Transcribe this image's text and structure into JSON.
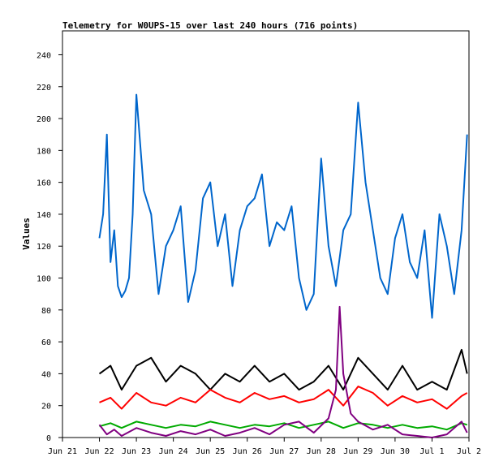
{
  "chart_data": {
    "type": "line",
    "title": "Telemetry for W0UPS-15 over last 240 hours (716 points)",
    "xlabel": "",
    "ylabel": "Values",
    "ylim": [
      0,
      255
    ],
    "yticks": [
      0,
      20,
      40,
      60,
      80,
      100,
      120,
      140,
      160,
      180,
      200,
      220,
      240
    ],
    "xlim_days": [
      0,
      11
    ],
    "xticks": [
      "Jun 21",
      "Jun 22",
      "Jun 23",
      "Jun 24",
      "Jun 25",
      "Jun 26",
      "Jun 27",
      "Jun 28",
      "Jun 29",
      "Jun 30",
      "Jul 1",
      "Jul 2"
    ],
    "grid": false,
    "legend": "none",
    "series": [
      {
        "color": "#0066cc",
        "x": [
          1.0,
          1.1,
          1.2,
          1.3,
          1.4,
          1.5,
          1.6,
          1.7,
          1.8,
          1.9,
          2.0,
          2.2,
          2.4,
          2.6,
          2.8,
          3.0,
          3.2,
          3.4,
          3.6,
          3.8,
          4.0,
          4.2,
          4.4,
          4.6,
          4.8,
          5.0,
          5.2,
          5.4,
          5.6,
          5.8,
          6.0,
          6.2,
          6.4,
          6.6,
          6.8,
          7.0,
          7.2,
          7.4,
          7.6,
          7.8,
          8.0,
          8.2,
          8.4,
          8.6,
          8.8,
          9.0,
          9.2,
          9.4,
          9.6,
          9.8,
          10.0,
          10.2,
          10.4,
          10.6,
          10.8,
          10.95
        ],
        "y": [
          125,
          140,
          190,
          110,
          130,
          95,
          88,
          92,
          100,
          140,
          215,
          155,
          140,
          90,
          120,
          130,
          145,
          85,
          105,
          150,
          160,
          120,
          140,
          95,
          130,
          145,
          150,
          165,
          120,
          135,
          130,
          145,
          100,
          80,
          90,
          175,
          120,
          95,
          130,
          140,
          210,
          160,
          130,
          100,
          90,
          125,
          140,
          110,
          100,
          130,
          75,
          140,
          120,
          90,
          130,
          190
        ]
      },
      {
        "color": "#000000",
        "x": [
          1.0,
          1.3,
          1.6,
          2.0,
          2.4,
          2.8,
          3.2,
          3.6,
          4.0,
          4.4,
          4.8,
          5.2,
          5.6,
          6.0,
          6.4,
          6.8,
          7.2,
          7.6,
          8.0,
          8.4,
          8.8,
          9.2,
          9.6,
          10.0,
          10.4,
          10.8,
          10.95
        ],
        "y": [
          40,
          45,
          30,
          45,
          50,
          35,
          45,
          40,
          30,
          40,
          35,
          45,
          35,
          40,
          30,
          35,
          45,
          30,
          50,
          40,
          30,
          45,
          30,
          35,
          30,
          55,
          40
        ]
      },
      {
        "color": "#ff0000",
        "x": [
          1.0,
          1.3,
          1.6,
          2.0,
          2.4,
          2.8,
          3.2,
          3.6,
          4.0,
          4.4,
          4.8,
          5.2,
          5.6,
          6.0,
          6.4,
          6.8,
          7.2,
          7.6,
          8.0,
          8.4,
          8.8,
          9.2,
          9.6,
          10.0,
          10.4,
          10.8,
          10.95
        ],
        "y": [
          22,
          25,
          18,
          28,
          22,
          20,
          25,
          22,
          30,
          25,
          22,
          28,
          24,
          26,
          22,
          24,
          30,
          20,
          32,
          28,
          20,
          26,
          22,
          24,
          18,
          26,
          28
        ]
      },
      {
        "color": "#00aa00",
        "x": [
          1.0,
          1.3,
          1.6,
          2.0,
          2.4,
          2.8,
          3.2,
          3.6,
          4.0,
          4.4,
          4.8,
          5.2,
          5.6,
          6.0,
          6.4,
          6.8,
          7.2,
          7.6,
          8.0,
          8.4,
          8.8,
          9.2,
          9.6,
          10.0,
          10.4,
          10.8,
          10.95
        ],
        "y": [
          7,
          9,
          6,
          10,
          8,
          6,
          8,
          7,
          10,
          8,
          6,
          8,
          7,
          9,
          6,
          8,
          10,
          6,
          9,
          8,
          6,
          8,
          6,
          7,
          5,
          9,
          8
        ]
      },
      {
        "color": "#800080",
        "x": [
          1.0,
          1.2,
          1.4,
          1.6,
          2.0,
          2.4,
          2.8,
          3.2,
          3.6,
          4.0,
          4.4,
          4.8,
          5.2,
          5.6,
          6.0,
          6.4,
          6.8,
          7.2,
          7.4,
          7.5,
          7.6,
          7.8,
          8.0,
          8.4,
          8.8,
          9.2,
          9.6,
          10.0,
          10.4,
          10.8,
          10.95
        ],
        "y": [
          8,
          2,
          5,
          1,
          6,
          3,
          1,
          4,
          2,
          5,
          1,
          3,
          6,
          2,
          8,
          10,
          3,
          12,
          30,
          82,
          40,
          15,
          10,
          5,
          8,
          2,
          1,
          0,
          2,
          10,
          3
        ]
      }
    ]
  }
}
